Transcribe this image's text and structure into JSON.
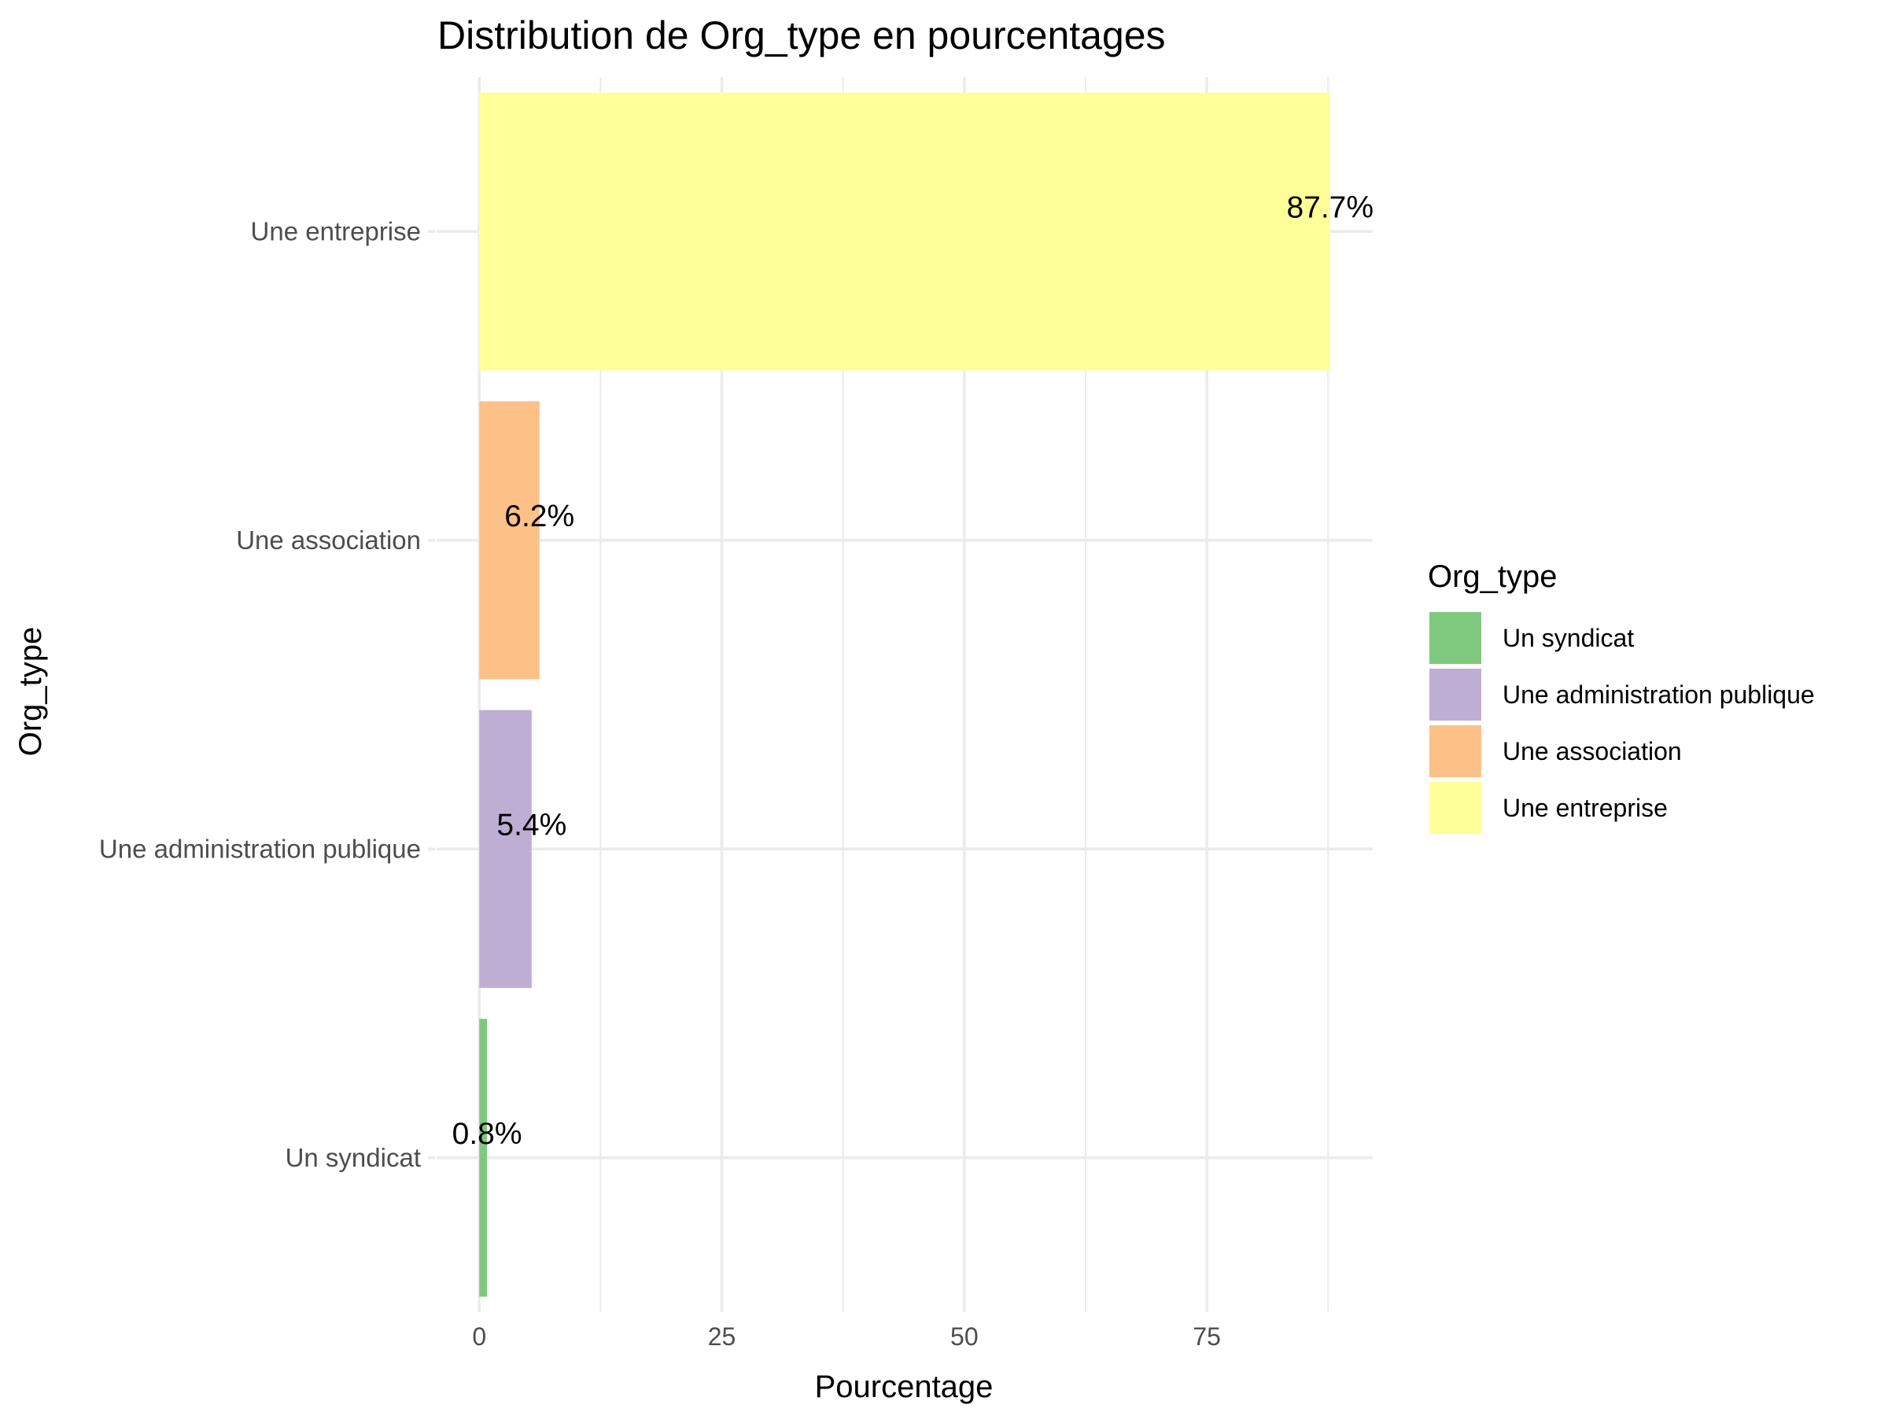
{
  "chart_data": {
    "type": "bar",
    "orientation": "horizontal",
    "title": "Distribution de Org_type en pourcentages",
    "xlabel": "Pourcentage",
    "ylabel": "Org_type",
    "categories": [
      "Un syndicat",
      "Une administration publique",
      "Une association",
      "Une entreprise"
    ],
    "values": [
      0.8,
      5.4,
      6.2,
      87.7
    ],
    "data_labels": [
      "0.8%",
      "5.4%",
      "6.2%",
      "87.7%"
    ],
    "colors": [
      "#7fc97f",
      "#beaed4",
      "#fdc086",
      "#ffff99"
    ],
    "xlim": [
      -4.4,
      92.1
    ],
    "xticks": [
      0,
      25,
      50,
      75
    ],
    "xtick_labels": [
      "0",
      "25",
      "50",
      "75"
    ],
    "grid": true,
    "legend": {
      "title": "Org_type",
      "position": "right",
      "items": [
        "Un syndicat",
        "Une administration publique",
        "Une association",
        "Une entreprise"
      ]
    }
  }
}
